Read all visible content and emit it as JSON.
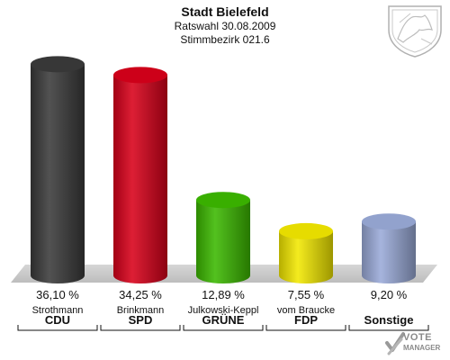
{
  "header": {
    "title": "Stadt Bielefeld",
    "subtitle1": "Ratswahl 30.08.2009",
    "subtitle2": "Stimmbezirk 021.6"
  },
  "logo": {
    "line1": "VOTE",
    "line2": "MANAGER"
  },
  "chart_data": {
    "type": "bar",
    "categories": [
      "CDU",
      "SPD",
      "GRÜNE",
      "FDP",
      "Sonstige"
    ],
    "candidates": [
      "Strothmann",
      "Brinkmann",
      "Julkowski-Keppl",
      "vom Braucke",
      ""
    ],
    "values": [
      36.1,
      34.25,
      12.89,
      7.55,
      9.2
    ],
    "value_labels": [
      "36,10 %",
      "34,25 %",
      "12,89 %",
      "7,55 %",
      "9,20 %"
    ],
    "colors": [
      "#3a3a3a",
      "#d8001a",
      "#3cb800",
      "#f2e800",
      "#9aaad8"
    ],
    "ylim": [
      0,
      40
    ],
    "grid": false,
    "legend": "none"
  }
}
